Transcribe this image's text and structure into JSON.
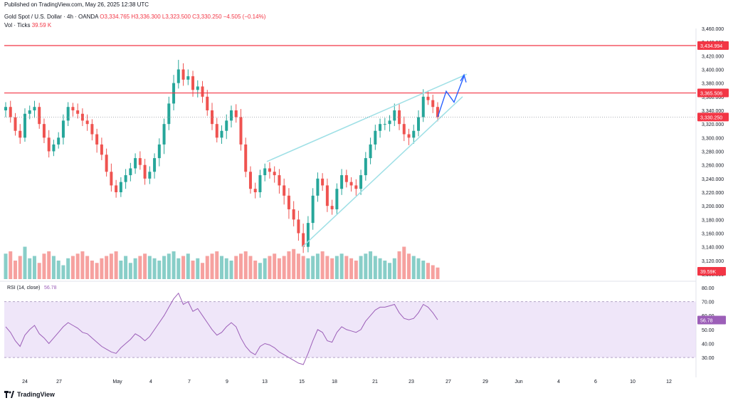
{
  "header": {
    "published": "Published on TradingView.com, May 26, 2025 12:38 UTC",
    "symbol": "Gold Spot / U.S. Dollar · 4h · OANDA",
    "ohlc": "O3,334.765  H3,336.300  L3,323.500  C3,330.250  −4.505 (−0.14%)",
    "volume_label": "Vol · Ticks",
    "volume_value": "39.59 K"
  },
  "rsi_label": "RSI (14, close)",
  "rsi_value": "56.78",
  "footer_brand": "TradingView",
  "colors": {
    "up": "#26a69a",
    "down": "#ef5350",
    "resistance": "#f23645",
    "channel": "#9fe0e6",
    "projection": "#2962ff",
    "rsi_band": "#e8dcf7",
    "rsi_line": "#9c5fb8"
  },
  "chart_data": {
    "type": "candlestick",
    "price_axis_ticks": [
      "3,460.000",
      "3,440.000",
      "3,420.000",
      "3,400.000",
      "3,380.000",
      "3,360.000",
      "3,340.000",
      "3,320.000",
      "3,300.000",
      "3,280.000",
      "3,260.000",
      "3,240.000",
      "3,220.000",
      "3,200.000",
      "3,180.000",
      "3,160.000",
      "3,140.000",
      "3,120.000",
      "3,100.000"
    ],
    "price_range": [
      3100,
      3460
    ],
    "rsi_axis_ticks": [
      "80.00",
      "70.00",
      "60.00",
      "50.00",
      "40.00",
      "30.00"
    ],
    "rsi_range": [
      25,
      82
    ],
    "rsi_levels": [
      70,
      30
    ],
    "date_labels": [
      "24",
      "27",
      "May",
      "4",
      "7",
      "9",
      "13",
      "15",
      "18",
      "21",
      "23",
      "27",
      "29",
      "Jun",
      "4",
      "6",
      "10",
      "12"
    ],
    "price_tags": [
      {
        "label": "3,434.994",
        "price": 3434.994,
        "kind": "resistance"
      },
      {
        "label": "3,365.506",
        "price": 3365.506,
        "kind": "resistance"
      },
      {
        "label": "3,330.250",
        "price": 3330.25,
        "kind": "last"
      }
    ],
    "volume_tag": "39.59K",
    "rsi_tag": "56.78",
    "resistance_levels": [
      3434.994,
      3365.506
    ],
    "close_path": [
      3345,
      3330,
      3310,
      3300,
      3335,
      3340,
      3345,
      3320,
      3300,
      3280,
      3290,
      3300,
      3325,
      3345,
      3340,
      3335,
      3325,
      3320,
      3305,
      3290,
      3275,
      3250,
      3230,
      3220,
      3235,
      3245,
      3255,
      3270,
      3260,
      3240,
      3250,
      3270,
      3290,
      3320,
      3350,
      3380,
      3400,
      3385,
      3390,
      3370,
      3375,
      3360,
      3340,
      3320,
      3300,
      3310,
      3325,
      3340,
      3330,
      3290,
      3250,
      3225,
      3220,
      3245,
      3255,
      3250,
      3245,
      3230,
      3215,
      3195,
      3180,
      3160,
      3140,
      3175,
      3215,
      3240,
      3230,
      3200,
      3195,
      3225,
      3245,
      3235,
      3230,
      3225,
      3245,
      3270,
      3290,
      3310,
      3320,
      3320,
      3325,
      3340,
      3320,
      3305,
      3300,
      3310,
      3330,
      3360,
      3355,
      3345,
      3330
    ],
    "volume_path": [
      0.55,
      0.6,
      0.4,
      0.5,
      0.7,
      0.45,
      0.5,
      0.35,
      0.55,
      0.6,
      0.5,
      0.4,
      0.3,
      0.45,
      0.5,
      0.55,
      0.6,
      0.5,
      0.4,
      0.35,
      0.45,
      0.5,
      0.55,
      0.6,
      0.4,
      0.5,
      0.35,
      0.45,
      0.5,
      0.55,
      0.5,
      0.45,
      0.4,
      0.5,
      0.55,
      0.6,
      0.45,
      0.5,
      0.55,
      0.4,
      0.45,
      0.35,
      0.5,
      0.55,
      0.6,
      0.5,
      0.45,
      0.4,
      0.5,
      0.55,
      0.6,
      0.5,
      0.4,
      0.35,
      0.45,
      0.5,
      0.55,
      0.45,
      0.5,
      0.6,
      0.65,
      0.55,
      0.5,
      0.45,
      0.5,
      0.55,
      0.6,
      0.5,
      0.45,
      0.5,
      0.55,
      0.5,
      0.45,
      0.4,
      0.5,
      0.55,
      0.6,
      0.5,
      0.45,
      0.4,
      0.35,
      0.45,
      0.6,
      0.7,
      0.55,
      0.5,
      0.45,
      0.4,
      0.35,
      0.3,
      0.25
    ],
    "rsi_path": [
      52,
      48,
      42,
      38,
      46,
      50,
      53,
      47,
      44,
      40,
      44,
      48,
      52,
      55,
      53,
      51,
      48,
      47,
      44,
      41,
      38,
      36,
      34,
      33,
      37,
      40,
      43,
      47,
      45,
      42,
      45,
      50,
      55,
      60,
      66,
      72,
      76,
      68,
      70,
      63,
      65,
      60,
      55,
      50,
      46,
      48,
      52,
      55,
      52,
      44,
      38,
      34,
      32,
      38,
      40,
      39,
      37,
      34,
      32,
      30,
      28,
      26,
      25,
      33,
      42,
      50,
      48,
      42,
      41,
      48,
      52,
      50,
      49,
      48,
      50,
      56,
      60,
      64,
      66,
      66,
      67,
      68,
      62,
      58,
      57,
      58,
      62,
      68,
      66,
      62,
      57
    ]
  }
}
